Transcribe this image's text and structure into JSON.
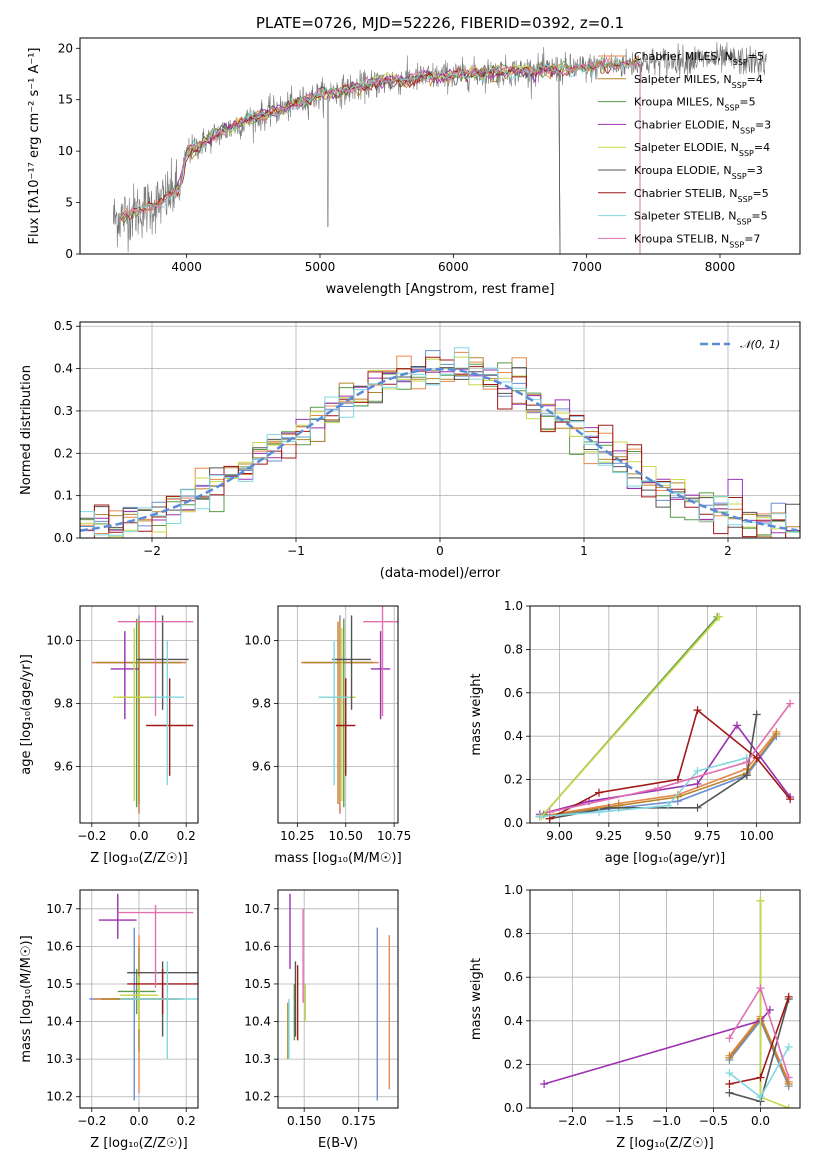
{
  "title": "PLATE=0726, MJD=52226, FIBERID=0392, z=0.1",
  "colors": [
    "#6a8fd4",
    "#e8884a",
    "#b8862a",
    "#5a9a4a",
    "#9b30b0",
    "#c8d84a",
    "#555555",
    "#a01818",
    "#80d8e0",
    "#e070b0"
  ],
  "chart_data": [
    {
      "type": "line",
      "panel": "spectrum",
      "xlabel": "wavelength [Angstrom, rest frame]",
      "ylabel": "Flux [fλ10⁻¹⁷ erg cm⁻² s⁻¹ A⁻¹]",
      "xlim": [
        3200,
        8600
      ],
      "ylim": [
        0,
        21
      ],
      "xticks": [
        4000,
        5000,
        6000,
        7000,
        8000
      ],
      "yticks": [
        0,
        5,
        10,
        15,
        20
      ],
      "grid": false,
      "legend_position": "right",
      "observed_spectrum": {
        "x_range": [
          3450,
          8350
        ],
        "continuum": [
          [
            3450,
            3.4
          ],
          [
            3600,
            4.0
          ],
          [
            3800,
            5.0
          ],
          [
            3950,
            6.5
          ],
          [
            4000,
            9.8
          ],
          [
            4200,
            11.5
          ],
          [
            4500,
            13.2
          ],
          [
            4800,
            14.5
          ],
          [
            5000,
            15.5
          ],
          [
            5200,
            16.0
          ],
          [
            5500,
            16.8
          ],
          [
            5800,
            17.2
          ],
          [
            6000,
            17.4
          ],
          [
            6500,
            17.8
          ],
          [
            7000,
            18.1
          ],
          [
            7500,
            18.7
          ],
          [
            8000,
            19.0
          ],
          [
            8350,
            18.5
          ]
        ]
      },
      "series": [
        {
          "name": "Chabrier MILES, N",
          "sub": "SSP",
          "suffix": "=5",
          "x_range": [
            3500,
            7400
          ]
        },
        {
          "name": "Salpeter MILES, N",
          "sub": "SSP",
          "suffix": "=4",
          "x_range": [
            3500,
            7400
          ]
        },
        {
          "name": "Kroupa MILES, N",
          "sub": "SSP",
          "suffix": "=5",
          "x_range": [
            3500,
            7400
          ]
        },
        {
          "name": "Chabrier ELODIE, N",
          "sub": "SSP",
          "suffix": "=3",
          "x_range": [
            3900,
            6800
          ]
        },
        {
          "name": "Salpeter ELODIE, N",
          "sub": "SSP",
          "suffix": "=4",
          "x_range": [
            3900,
            6800
          ]
        },
        {
          "name": "Kroupa ELODIE, N",
          "sub": "SSP",
          "suffix": "=3",
          "x_range": [
            3900,
            6800
          ]
        },
        {
          "name": "Chabrier STELIB, N",
          "sub": "SSP",
          "suffix": "=5",
          "x_range": [
            3500,
            7400
          ]
        },
        {
          "name": "Salpeter STELIB, N",
          "sub": "SSP",
          "suffix": "=5",
          "x_range": [
            3500,
            7400
          ]
        },
        {
          "name": "Kroupa STELIB, N",
          "sub": "SSP",
          "suffix": "=7",
          "x_range": [
            3500,
            7400
          ]
        }
      ]
    },
    {
      "type": "histogram",
      "panel": "residuals",
      "xlabel": "(data-model)/error",
      "ylabel": "Normed distribution",
      "xlim": [
        -2.5,
        2.5
      ],
      "ylim": [
        0,
        0.51
      ],
      "xticks": [
        -2,
        -1,
        0,
        1,
        2
      ],
      "yticks": [
        0.0,
        0.1,
        0.2,
        0.3,
        0.4,
        0.5
      ],
      "grid": true,
      "bin_width": 0.1,
      "legend_position": "top-right",
      "reference_curve": {
        "name": "𝒩(0, 1)",
        "mean": 0,
        "sigma": 1,
        "color": "#5b8bd8"
      },
      "histogram_series_count": 9
    },
    {
      "type": "errorbar",
      "panel": "age-vs-Z",
      "xlabel": "Z [log₁₀(Z/Z☉)]",
      "ylabel": "age  [log₁₀(age/yr)]",
      "xlim": [
        -0.25,
        0.25
      ],
      "ylim": [
        9.42,
        10.11
      ],
      "xticks": [
        -0.2,
        0.0,
        0.2
      ],
      "yticks": [
        9.6,
        9.8,
        10.0
      ],
      "grid": true,
      "points": [
        {
          "x": 0.0,
          "y": 9.93,
          "xerr": 0.2,
          "yerr_lo": 0.48,
          "yerr_hi": 0.15
        },
        {
          "x": 0.0,
          "y": 9.93,
          "xerr": 0.2,
          "yerr_lo": 0.48,
          "yerr_hi": 0.14
        },
        {
          "x": 0.0,
          "y": 9.93,
          "xerr": 0.18,
          "yerr_lo": 0.45,
          "yerr_hi": 0.13
        },
        {
          "x": -0.01,
          "y": 9.82,
          "xerr": 0.08,
          "yerr_lo": 0.35,
          "yerr_hi": 0.25
        },
        {
          "x": -0.06,
          "y": 9.91,
          "xerr": 0.06,
          "yerr_lo": 0.16,
          "yerr_hi": 0.12
        },
        {
          "x": -0.02,
          "y": 9.82,
          "xerr": 0.09,
          "yerr_lo": 0.33,
          "yerr_hi": 0.22
        },
        {
          "x": 0.1,
          "y": 9.94,
          "xerr": 0.11,
          "yerr_lo": 0.16,
          "yerr_hi": 0.14
        },
        {
          "x": 0.13,
          "y": 9.73,
          "xerr": 0.1,
          "yerr_lo": 0.16,
          "yerr_hi": 0.15
        },
        {
          "x": 0.12,
          "y": 9.82,
          "xerr": 0.07,
          "yerr_lo": 0.28,
          "yerr_hi": 0.18
        },
        {
          "x": 0.07,
          "y": 10.06,
          "xerr": 0.16,
          "yerr_lo": 0.3,
          "yerr_hi": 0.05
        }
      ]
    },
    {
      "type": "errorbar",
      "panel": "age-vs-mass",
      "xlabel": "mass [log₁₀(M/M☉)]",
      "ylabel": "",
      "xlim": [
        10.15,
        10.77
      ],
      "ylim": [
        9.42,
        10.11
      ],
      "xticks": [
        10.25,
        10.5,
        10.75
      ],
      "yticks": [
        9.6,
        9.8,
        10.0
      ],
      "grid": true,
      "points": [
        {
          "x": 10.47,
          "y": 9.93,
          "xerr": 0.2,
          "yerr_lo": 0.48,
          "yerr_hi": 0.15
        },
        {
          "x": 10.47,
          "y": 9.93,
          "xerr": 0.2,
          "yerr_lo": 0.48,
          "yerr_hi": 0.14
        },
        {
          "x": 10.46,
          "y": 9.93,
          "xerr": 0.18,
          "yerr_lo": 0.45,
          "yerr_hi": 0.13
        },
        {
          "x": 10.49,
          "y": 9.82,
          "xerr": 0.06,
          "yerr_lo": 0.35,
          "yerr_hi": 0.25
        },
        {
          "x": 10.68,
          "y": 9.91,
          "xerr": 0.05,
          "yerr_lo": 0.16,
          "yerr_hi": 0.12
        },
        {
          "x": 10.48,
          "y": 9.82,
          "xerr": 0.07,
          "yerr_lo": 0.33,
          "yerr_hi": 0.22
        },
        {
          "x": 10.53,
          "y": 9.94,
          "xerr": 0.1,
          "yerr_lo": 0.16,
          "yerr_hi": 0.14
        },
        {
          "x": 10.5,
          "y": 9.73,
          "xerr": 0.05,
          "yerr_lo": 0.16,
          "yerr_hi": 0.15
        },
        {
          "x": 10.44,
          "y": 9.82,
          "xerr": 0.08,
          "yerr_lo": 0.28,
          "yerr_hi": 0.18
        },
        {
          "x": 10.69,
          "y": 10.06,
          "xerr": 0.1,
          "yerr_lo": 0.3,
          "yerr_hi": 0.05
        }
      ]
    },
    {
      "type": "line",
      "panel": "mass-weight-vs-age",
      "xlabel": "age  [log₁₀(age/yr)]",
      "ylabel": "mass weight",
      "xlim": [
        8.85,
        10.22
      ],
      "ylim": [
        0,
        1.0
      ],
      "xticks": [
        9.0,
        9.25,
        9.5,
        9.75,
        10.0
      ],
      "yticks": [
        0.0,
        0.2,
        0.4,
        0.6,
        0.8,
        1.0
      ],
      "grid": true,
      "marker": "+",
      "series": [
        {
          "x": [
            8.9,
            9.3,
            9.6,
            9.95,
            10.1
          ],
          "y": [
            0.03,
            0.07,
            0.1,
            0.22,
            0.4
          ]
        },
        {
          "x": [
            8.9,
            9.3,
            9.6,
            9.95,
            10.1
          ],
          "y": [
            0.03,
            0.09,
            0.13,
            0.25,
            0.42
          ]
        },
        {
          "x": [
            8.9,
            9.3,
            9.6,
            9.95,
            10.1
          ],
          "y": [
            0.03,
            0.08,
            0.12,
            0.23,
            0.41
          ]
        },
        {
          "x": [
            8.92,
            9.8
          ],
          "y": [
            0.04,
            0.95
          ]
        },
        {
          "x": [
            8.9,
            9.15,
            9.7,
            9.9,
            10.17
          ],
          "y": [
            0.04,
            0.1,
            0.18,
            0.45,
            0.12
          ]
        },
        {
          "x": [
            8.91,
            9.81
          ],
          "y": [
            0.03,
            0.95
          ]
        },
        {
          "x": [
            8.95,
            9.25,
            9.7,
            9.95,
            10.0
          ],
          "y": [
            0.02,
            0.07,
            0.07,
            0.22,
            0.5
          ]
        },
        {
          "x": [
            8.95,
            9.2,
            9.6,
            9.7,
            10.0,
            10.17
          ],
          "y": [
            0.02,
            0.14,
            0.2,
            0.52,
            0.3,
            0.11
          ]
        },
        {
          "x": [
            8.9,
            9.2,
            9.55,
            9.7,
            9.95
          ],
          "y": [
            0.03,
            0.05,
            0.08,
            0.24,
            0.3
          ]
        },
        {
          "x": [
            8.95,
            9.5,
            9.95,
            10.17
          ],
          "y": [
            0.05,
            0.16,
            0.28,
            0.55
          ]
        }
      ]
    },
    {
      "type": "errorbar",
      "panel": "mass-vs-Z",
      "xlabel": "Z [log₁₀(Z/Z☉)]",
      "ylabel": "mass [log₁₀(M/M☉)]",
      "xlim": [
        -0.25,
        0.25
      ],
      "ylim": [
        10.17,
        10.75
      ],
      "xticks": [
        -0.2,
        0.0,
        0.2
      ],
      "yticks": [
        10.2,
        10.3,
        10.4,
        10.5,
        10.6,
        10.7
      ],
      "grid": true,
      "points": [
        {
          "x": -0.02,
          "y": 10.46,
          "xerr": 0.19,
          "yerr_lo": 0.27,
          "yerr_hi": 0.19
        },
        {
          "x": 0.0,
          "y": 10.46,
          "xerr": 0.19,
          "yerr_lo": 0.25,
          "yerr_hi": 0.17
        },
        {
          "x": 0.0,
          "y": 10.46,
          "xerr": 0.16,
          "yerr_lo": 0.14,
          "yerr_hi": 0.14
        },
        {
          "x": -0.01,
          "y": 10.48,
          "xerr": 0.08,
          "yerr_lo": 0.06,
          "yerr_hi": 0.06
        },
        {
          "x": -0.09,
          "y": 10.67,
          "xerr": 0.08,
          "yerr_lo": 0.05,
          "yerr_hi": 0.07
        },
        {
          "x": 0.0,
          "y": 10.47,
          "xerr": 0.08,
          "yerr_lo": 0.09,
          "yerr_hi": 0.05
        },
        {
          "x": 0.1,
          "y": 10.53,
          "xerr": 0.15,
          "yerr_lo": 0.17,
          "yerr_hi": 0.03
        },
        {
          "x": 0.1,
          "y": 10.5,
          "xerr": 0.15,
          "yerr_lo": 0.08,
          "yerr_hi": 0.04
        },
        {
          "x": 0.12,
          "y": 10.46,
          "xerr": 0.2,
          "yerr_lo": 0.16,
          "yerr_hi": 0.1
        },
        {
          "x": 0.07,
          "y": 10.69,
          "xerr": 0.16,
          "yerr_lo": 0.2,
          "yerr_hi": 0.02
        }
      ]
    },
    {
      "type": "errorbar",
      "panel": "mass-vs-EBV",
      "xlabel": "E(B-V)",
      "ylabel": "",
      "xlim": [
        0.138,
        0.193
      ],
      "ylim": [
        10.17,
        10.75
      ],
      "xticks": [
        0.15,
        0.175
      ],
      "yticks": [
        10.2,
        10.3,
        10.4,
        10.5,
        10.6,
        10.7
      ],
      "grid": true,
      "points": [
        {
          "x": 0.1835,
          "y": 10.42,
          "yerr_lo": 0.23,
          "yerr_hi": 0.23
        },
        {
          "x": 0.189,
          "y": 10.42,
          "yerr_lo": 0.2,
          "yerr_hi": 0.21
        },
        {
          "x": 0.1425,
          "y": 10.4,
          "yerr_lo": 0.1,
          "yerr_hi": 0.05
        },
        {
          "x": 0.1455,
          "y": 10.45,
          "yerr_lo": 0.1,
          "yerr_hi": 0.05
        },
        {
          "x": 0.1435,
          "y": 10.62,
          "yerr_lo": 0.08,
          "yerr_hi": 0.12
        },
        {
          "x": 0.1505,
          "y": 10.44,
          "yerr_lo": 0.04,
          "yerr_hi": 0.06
        },
        {
          "x": 0.146,
          "y": 10.46,
          "yerr_lo": 0.1,
          "yerr_hi": 0.1
        },
        {
          "x": 0.147,
          "y": 10.45,
          "yerr_lo": 0.1,
          "yerr_hi": 0.1
        },
        {
          "x": 0.143,
          "y": 10.38,
          "yerr_lo": 0.08,
          "yerr_hi": 0.08
        },
        {
          "x": 0.1495,
          "y": 10.6,
          "yerr_lo": 0.15,
          "yerr_hi": 0.1
        }
      ]
    },
    {
      "type": "line",
      "panel": "mass-weight-vs-Z",
      "xlabel": "Z [log₁₀(Z/Z☉)]",
      "ylabel": "mass weight",
      "xlim": [
        -2.45,
        0.42
      ],
      "ylim": [
        0,
        1.0
      ],
      "xticks": [
        -2.0,
        -1.5,
        -1.0,
        -0.5,
        0.0
      ],
      "yticks": [
        0.0,
        0.2,
        0.4,
        0.6,
        0.8,
        1.0
      ],
      "grid": true,
      "marker": "+",
      "series": [
        {
          "x": [
            -0.33,
            0.0,
            0.3
          ],
          "y": [
            0.22,
            0.4,
            0.1
          ]
        },
        {
          "x": [
            -0.33,
            0.0,
            0.3
          ],
          "y": [
            0.24,
            0.42,
            0.12
          ]
        },
        {
          "x": [
            -0.33,
            0.0,
            0.3
          ],
          "y": [
            0.23,
            0.41,
            0.11
          ]
        },
        {
          "x": [
            0.0,
            0.0
          ],
          "y": [
            0.95,
            0.03
          ]
        },
        {
          "x": [
            -2.3,
            0.0,
            0.1
          ],
          "y": [
            0.11,
            0.4,
            0.45
          ]
        },
        {
          "x": [
            0.0,
            0.0,
            0.3
          ],
          "y": [
            0.95,
            0.05,
            0.0
          ]
        },
        {
          "x": [
            -0.33,
            0.0,
            0.3
          ],
          "y": [
            0.07,
            0.03,
            0.5
          ]
        },
        {
          "x": [
            -0.33,
            0.0,
            0.3
          ],
          "y": [
            0.11,
            0.14,
            0.51
          ]
        },
        {
          "x": [
            -0.33,
            0.0,
            0.3
          ],
          "y": [
            0.16,
            0.05,
            0.28
          ]
        },
        {
          "x": [
            -0.33,
            0.0,
            0.3
          ],
          "y": [
            0.32,
            0.55,
            0.14
          ]
        }
      ]
    }
  ]
}
